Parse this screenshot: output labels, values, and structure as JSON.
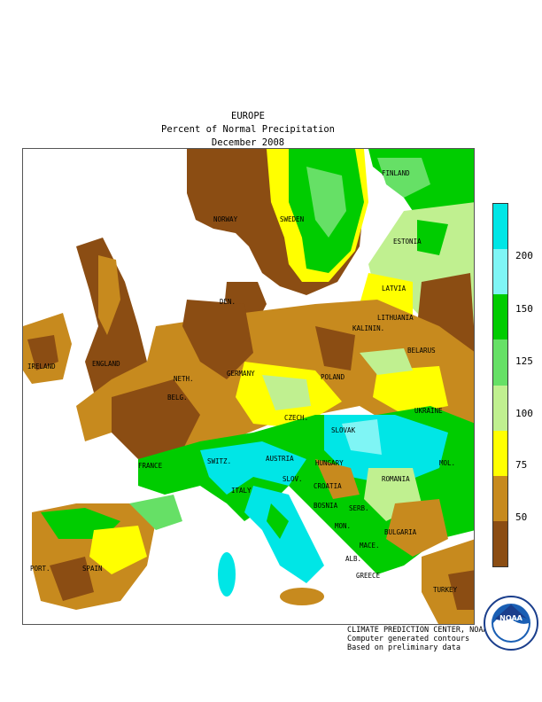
{
  "title": {
    "line1": "EUROPE",
    "line2": "Percent of Normal Precipitation",
    "line3": "December 2008"
  },
  "legend": {
    "colors": [
      "#00e6e6",
      "#7ff5f5",
      "#00cc00",
      "#66e066",
      "#c0f090",
      "#ffff00",
      "#c78a1e",
      "#8b4d13"
    ],
    "bands": [
      "> 200",
      "150-200",
      "150",
      "125-150",
      "100-125",
      "75-100",
      "50-75",
      "< 50"
    ],
    "ticks": [
      "200",
      "150",
      "125",
      "100",
      "75",
      "50"
    ]
  },
  "map": {
    "country_labels": [
      "FINLAND",
      "NORWAY",
      "SWEDEN",
      "ESTONIA",
      "LATVIA",
      "DEN.",
      "LITHUANIA",
      "KALININ.",
      "BELARUS",
      "IRELAND",
      "ENGLAND",
      "NETH.",
      "GERMANY",
      "POLAND",
      "BELG.",
      "CZECH.",
      "UKRAINE",
      "SLOVAK",
      "FRANCE",
      "SWITZ.",
      "AUSTRIA",
      "HUNGARY",
      "MOL.",
      "ROMANIA",
      "ITALY",
      "SLOV.",
      "CROATIA",
      "BOSNIA",
      "SERB.",
      "MON.",
      "BULGARIA",
      "MACE.",
      "ALB.",
      "PORT.",
      "SPAIN",
      "GREECE",
      "TURKEY"
    ]
  },
  "credits": {
    "line1": "CLIMATE PREDICTION CENTER, NOAA",
    "line2": "Computer generated contours",
    "line3": "Based on preliminary data"
  },
  "logo": {
    "text": "NOAA",
    "ring_text": "NATIONAL OCEANIC AND ATMOSPHERIC ADMINISTRATION · U.S. DEPARTMENT OF COMMERCE"
  }
}
